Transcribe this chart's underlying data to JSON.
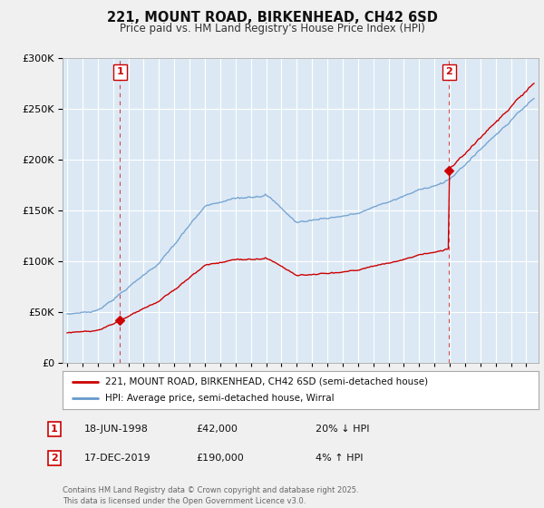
{
  "title1": "221, MOUNT ROAD, BIRKENHEAD, CH42 6SD",
  "title2": "Price paid vs. HM Land Registry's House Price Index (HPI)",
  "legend1": "221, MOUNT ROAD, BIRKENHEAD, CH42 6SD (semi-detached house)",
  "legend2": "HPI: Average price, semi-detached house, Wirral",
  "annotation1_label": "1",
  "annotation1_date": "18-JUN-1998",
  "annotation1_price": 42000,
  "annotation1_hpi": "20% ↓ HPI",
  "annotation2_label": "2",
  "annotation2_date": "17-DEC-2019",
  "annotation2_price": 190000,
  "annotation2_hpi": "4% ↑ HPI",
  "footer": "Contains HM Land Registry data © Crown copyright and database right 2025.\nThis data is licensed under the Open Government Licence v3.0.",
  "line_color_red": "#cc0000",
  "line_color_blue": "#6699cc",
  "ylim": [
    0,
    300000
  ],
  "yticks": [
    0,
    50000,
    100000,
    150000,
    200000,
    250000,
    300000
  ],
  "background_color": "#f0f0f0",
  "plot_bg": "#dce9f5"
}
